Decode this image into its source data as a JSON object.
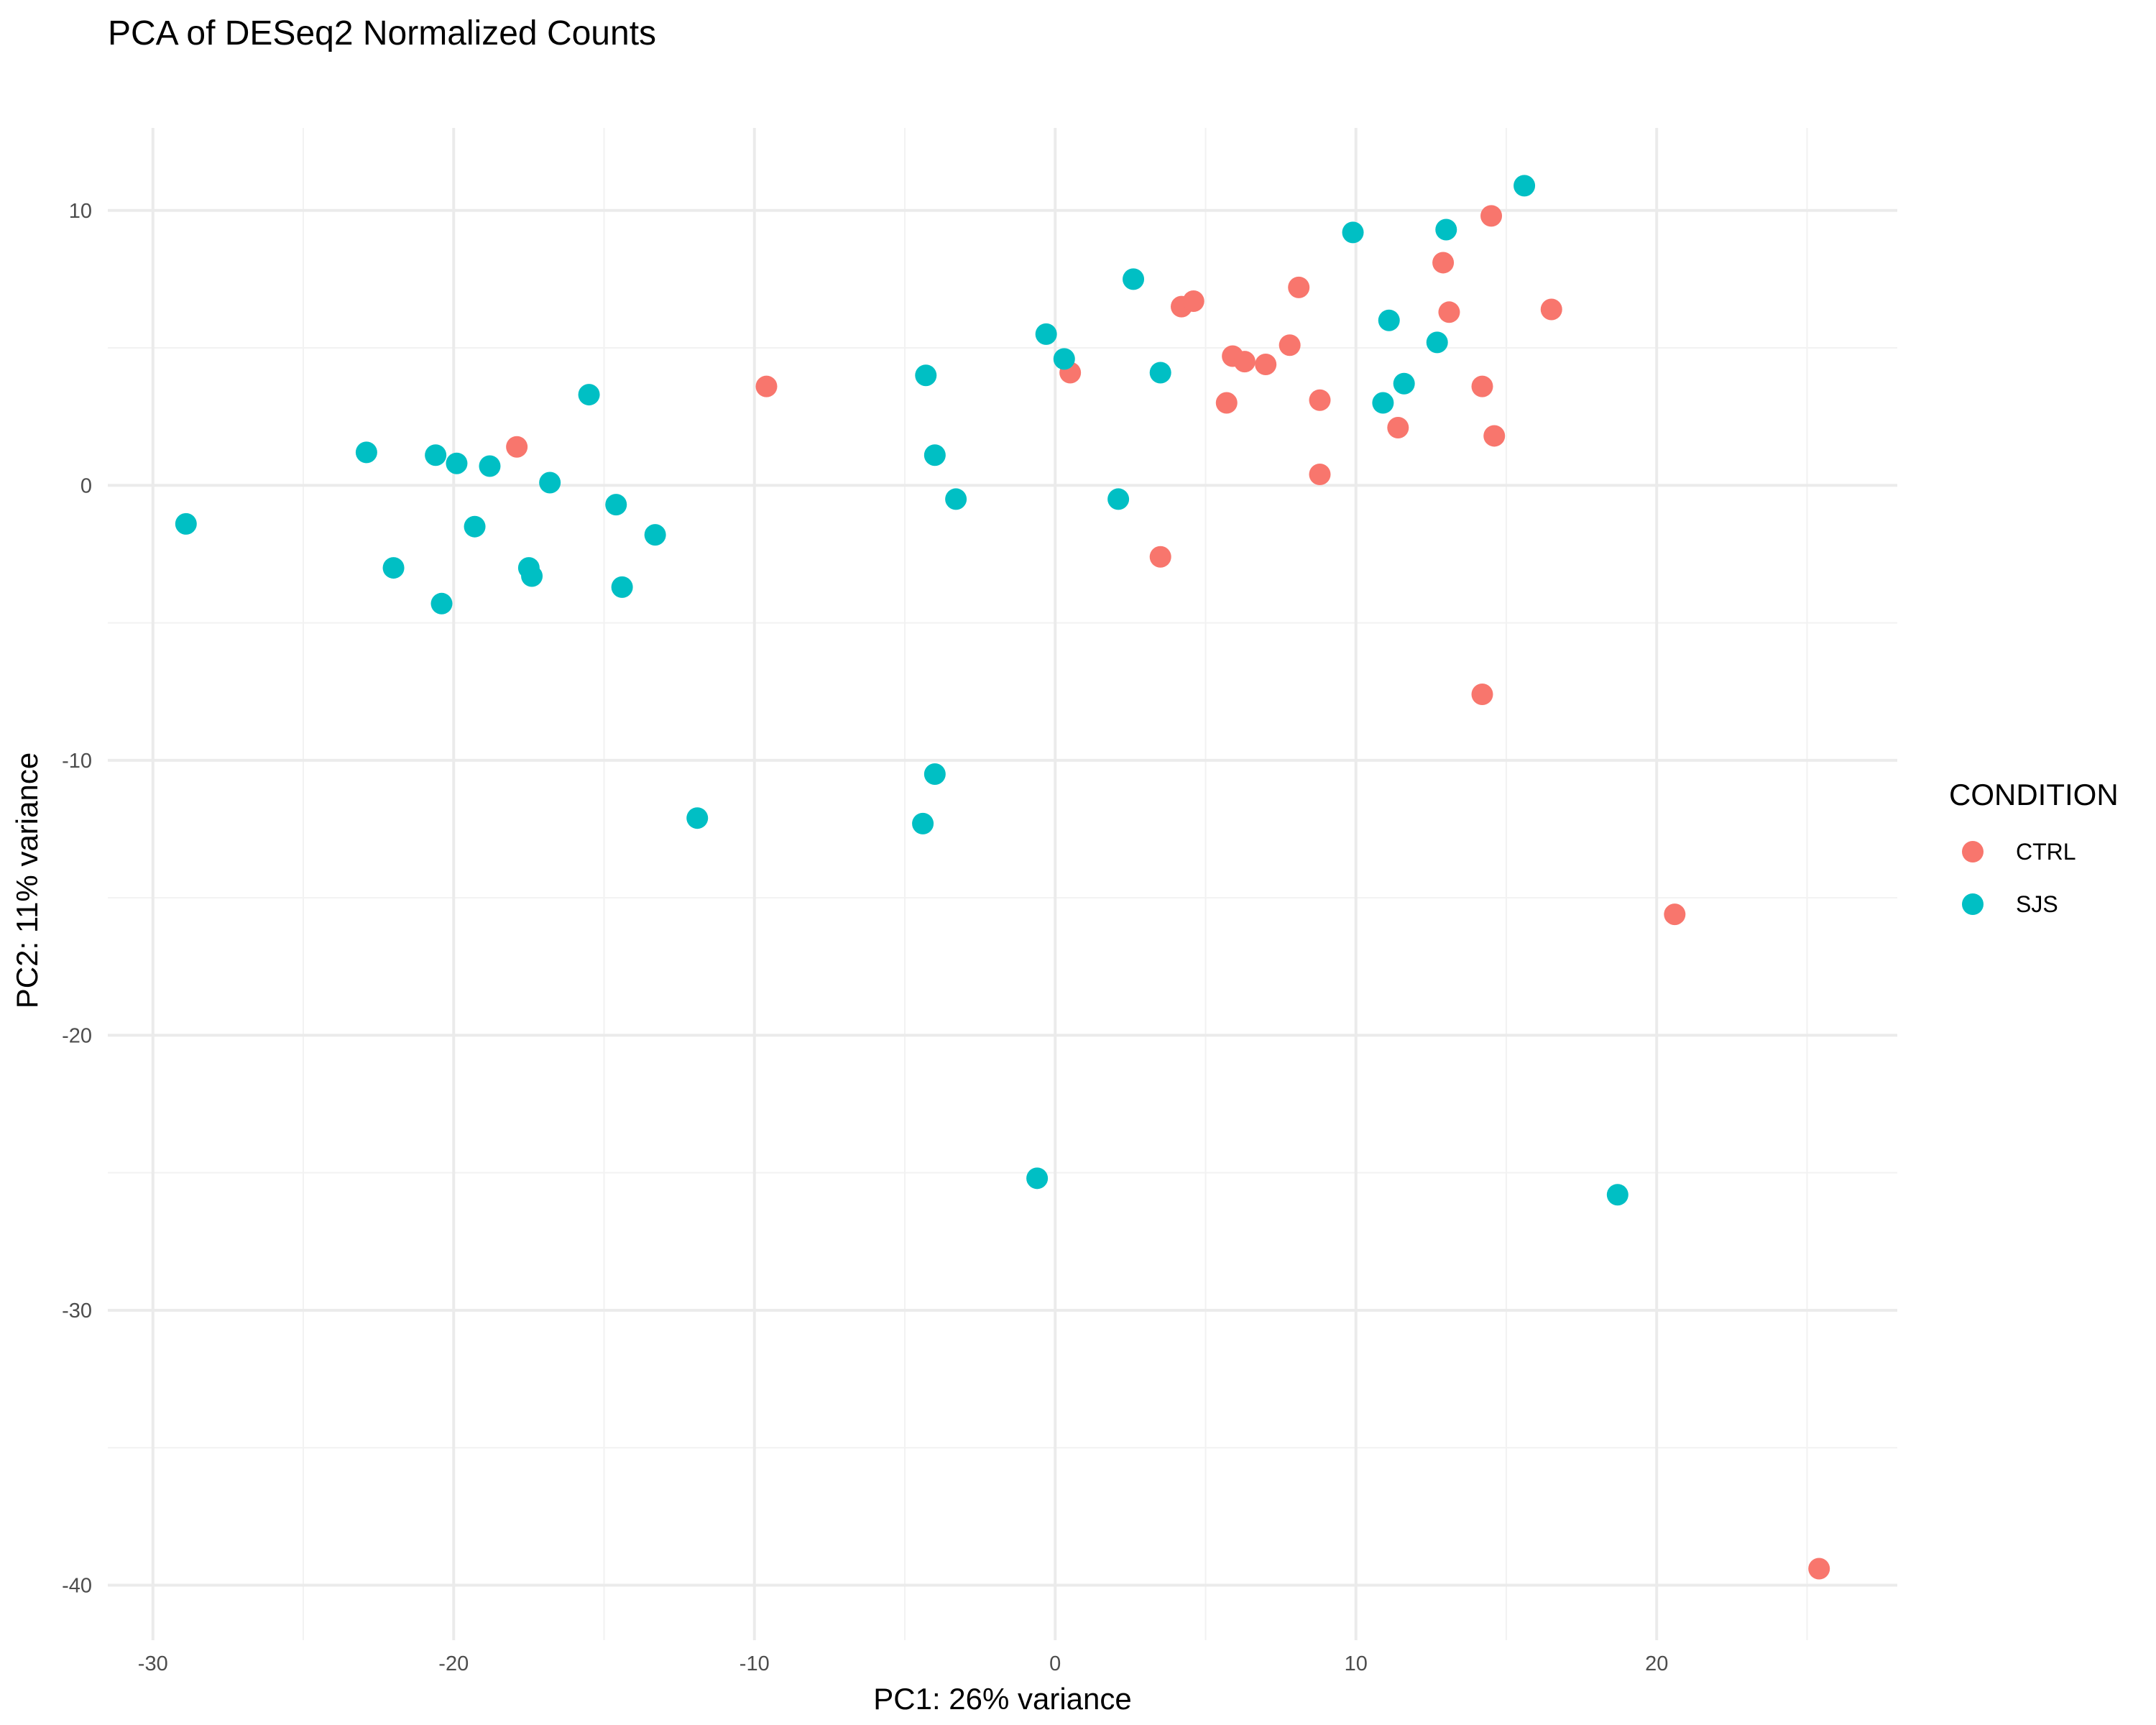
{
  "chart_data": {
    "type": "scatter",
    "title": "PCA of DESeq2 Normalized Counts",
    "xlabel": "PC1: 26% variance",
    "ylabel": "PC2: 11% variance",
    "xlim": [
      -31.5,
      28
    ],
    "ylim": [
      -42,
      13
    ],
    "x_ticks": [
      -30,
      -20,
      -10,
      0,
      10,
      20
    ],
    "y_ticks": [
      -40,
      -30,
      -20,
      -10,
      0,
      10
    ],
    "grid": true,
    "legend": {
      "title": "CONDITION",
      "position": "right"
    },
    "series": [
      {
        "name": "CTRL",
        "color": "#F8766D",
        "points": [
          [
            -17.9,
            1.4
          ],
          [
            -9.6,
            3.6
          ],
          [
            0.5,
            4.1
          ],
          [
            3.5,
            -2.6
          ],
          [
            4.2,
            6.5
          ],
          [
            4.6,
            6.7
          ],
          [
            5.7,
            3.0
          ],
          [
            5.9,
            4.7
          ],
          [
            6.3,
            4.5
          ],
          [
            7.0,
            4.4
          ],
          [
            7.8,
            5.1
          ],
          [
            8.1,
            7.2
          ],
          [
            8.8,
            3.1
          ],
          [
            8.8,
            0.4
          ],
          [
            11.4,
            2.1
          ],
          [
            12.9,
            8.1
          ],
          [
            13.1,
            6.3
          ],
          [
            14.2,
            3.6
          ],
          [
            14.5,
            9.8
          ],
          [
            14.6,
            1.8
          ],
          [
            16.5,
            6.4
          ],
          [
            14.2,
            -7.6
          ],
          [
            20.6,
            -15.6
          ],
          [
            25.4,
            -39.4
          ]
        ]
      },
      {
        "name": "SJS",
        "color": "#00BFC4",
        "points": [
          [
            -28.9,
            -1.4
          ],
          [
            -22.9,
            1.2
          ],
          [
            -22.0,
            -3.0
          ],
          [
            -20.6,
            1.1
          ],
          [
            -20.4,
            -4.3
          ],
          [
            -19.9,
            0.8
          ],
          [
            -19.3,
            -1.5
          ],
          [
            -18.8,
            0.7
          ],
          [
            -17.5,
            -3.0
          ],
          [
            -17.4,
            -3.3
          ],
          [
            -16.8,
            0.1
          ],
          [
            -15.5,
            3.3
          ],
          [
            -14.6,
            -0.7
          ],
          [
            -14.4,
            -3.7
          ],
          [
            -13.3,
            -1.8
          ],
          [
            -11.9,
            -12.1
          ],
          [
            -4.4,
            -12.3
          ],
          [
            -4.3,
            4.0
          ],
          [
            -4.0,
            1.1
          ],
          [
            -4.0,
            -10.5
          ],
          [
            -3.3,
            -0.5
          ],
          [
            -0.3,
            5.5
          ],
          [
            0.3,
            4.6
          ],
          [
            -0.6,
            -25.2
          ],
          [
            2.1,
            -0.5
          ],
          [
            2.6,
            7.5
          ],
          [
            3.5,
            4.1
          ],
          [
            9.9,
            9.2
          ],
          [
            11.1,
            6.0
          ],
          [
            10.9,
            3.0
          ],
          [
            11.6,
            3.7
          ],
          [
            12.7,
            5.2
          ],
          [
            13.0,
            9.3
          ],
          [
            15.6,
            10.9
          ],
          [
            18.7,
            -25.8
          ]
        ]
      }
    ]
  }
}
